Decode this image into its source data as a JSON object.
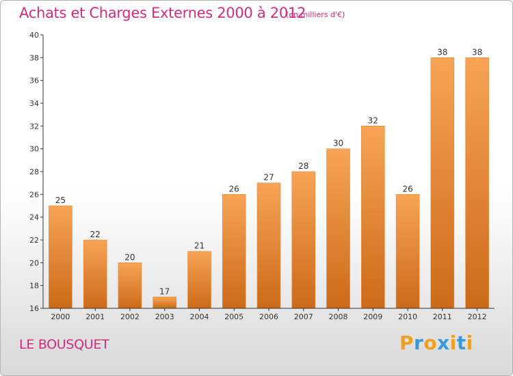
{
  "chart_data": {
    "type": "bar",
    "title": "Achats et Charges Externes 2000 à 2012",
    "subtitle": "(en milliers d'€)",
    "categories": [
      "2000",
      "2001",
      "2002",
      "2003",
      "2004",
      "2005",
      "2006",
      "2007",
      "2008",
      "2009",
      "2010",
      "2011",
      "2012"
    ],
    "values": [
      25,
      22,
      20,
      17,
      21,
      26,
      27,
      28,
      30,
      32,
      26,
      38,
      38
    ],
    "data_labels": [
      "25",
      "22",
      "20",
      "17",
      "21",
      "26",
      "27",
      "28",
      "30",
      "32",
      "26",
      "38",
      "38"
    ],
    "ylim": [
      16,
      40
    ],
    "yticks": [
      "16",
      "18",
      "20",
      "22",
      "24",
      "26",
      "28",
      "30",
      "32",
      "34",
      "36",
      "38",
      "40"
    ],
    "xlabel": "",
    "ylabel": "",
    "grid": false,
    "bar_color": "#f0913a"
  },
  "footer": {
    "place": "LE BOUSQUET"
  },
  "logo": {
    "letters": [
      "P",
      "r",
      "o",
      "x",
      "i",
      "t",
      "i"
    ],
    "colors": [
      "#f0a020",
      "#3a9ad9",
      "#f0a020",
      "#3a9ad9",
      "#f0a020",
      "#3a9ad9",
      "#f0a020"
    ]
  },
  "colors": {
    "title": "#d62a7c",
    "axis": "#333333"
  }
}
